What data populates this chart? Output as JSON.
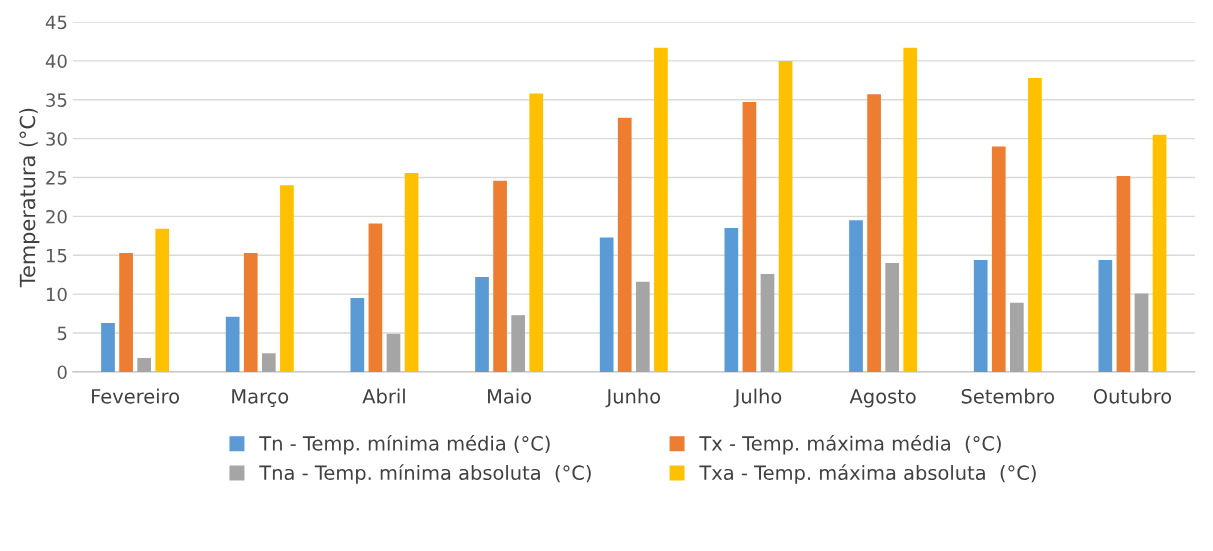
{
  "chart_data": {
    "type": "bar",
    "ylabel": "Temperatura (°C)",
    "categories": [
      "Fevereiro",
      "Março",
      "Abril",
      "Maio",
      "Junho",
      "Julho",
      "Agosto",
      "Setembro",
      "Outubro"
    ],
    "series": [
      {
        "name": "Tn - Temp. mínima média (°C)",
        "color": "#5b9bd5",
        "values": [
          6.3,
          7.1,
          9.5,
          12.2,
          17.3,
          18.5,
          19.5,
          14.4,
          14.4
        ]
      },
      {
        "name": "Tx - Temp. máxima média  (°C)",
        "color": "#ed7d31",
        "values": [
          15.3,
          15.3,
          19.1,
          24.6,
          32.7,
          34.7,
          35.7,
          29.0,
          25.2
        ]
      },
      {
        "name": "Tna - Temp. mínima absoluta  (°C)",
        "color": "#a5a5a5",
        "values": [
          1.8,
          2.4,
          4.9,
          7.3,
          11.6,
          12.6,
          14.0,
          8.9,
          10.1
        ]
      },
      {
        "name": "Txa - Temp. máxima absoluta  (°C)",
        "color": "#ffc000",
        "values": [
          18.4,
          24.0,
          25.6,
          35.8,
          41.7,
          40.0,
          41.7,
          37.8,
          30.5
        ]
      }
    ],
    "ylim": [
      0,
      45
    ],
    "yticks": [
      0,
      5,
      10,
      15,
      20,
      25,
      30,
      35,
      40,
      45
    ],
    "grid": "y",
    "legend": "bottom"
  }
}
